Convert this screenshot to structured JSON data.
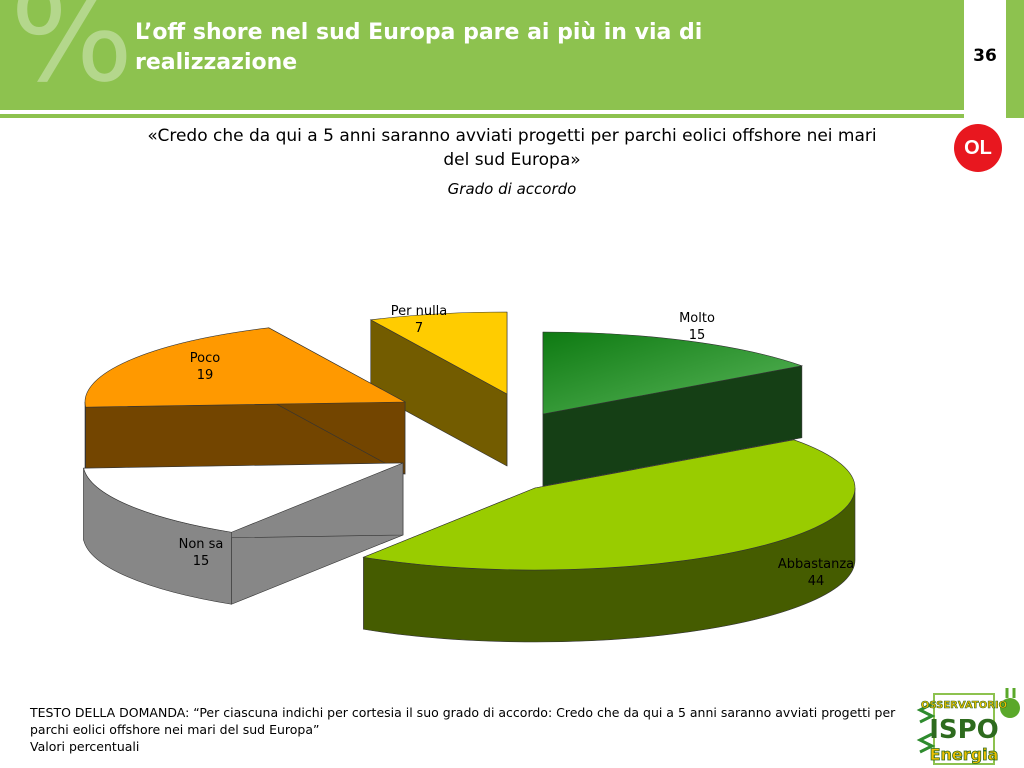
{
  "header": {
    "title": "L’off shore nel sud Europa pare ai più in via di realizzazione",
    "page_number": "36",
    "badge": "OL"
  },
  "question": "«Credo che da qui a 5 anni saranno avviati progetti per parchi eolici offshore nei mari del sud Europa»",
  "subtitle": "Grado di accordo",
  "chart_data": {
    "type": "pie",
    "title": "",
    "slices": [
      {
        "label": "Molto",
        "value": 15,
        "color": "#2e8b2e"
      },
      {
        "label": "Abbastanza",
        "value": 44,
        "color": "#99cc00"
      },
      {
        "label": "Non sa",
        "value": 15,
        "color": "#ffffff"
      },
      {
        "label": "Poco",
        "value": 19,
        "color": "#ff9900"
      },
      {
        "label": "Per nulla",
        "value": 7,
        "color": "#ffcc00"
      }
    ]
  },
  "footer": {
    "line1": "TESTO DELLA DOMANDA: “Per ciascuna indichi per cortesia il suo grado di accordo: Credo che da qui a 5 anni saranno avviati progetti per parchi eolici offshore nei mari del sud Europa”",
    "line2": "Valori percentuali"
  },
  "logo": {
    "line1": "OSSERVATORIO",
    "line2": "ISPO",
    "line3": "Energia"
  }
}
